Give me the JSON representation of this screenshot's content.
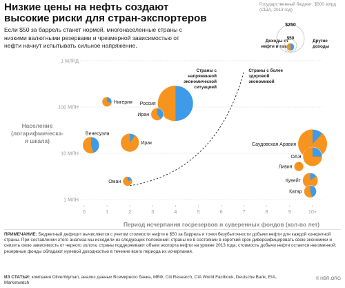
{
  "header": {
    "title": "Низкие цены на нефть создают высокие риски для стран-экспортеров",
    "subtitle": "Если $50 за баррель станет нормой, многонаселенные страны с низкими валютными резервами и чрезмерной зависимостью от нефти начнут испытывать сильное напряжение."
  },
  "legend": {
    "budget_title": "Государственный бюджет: $500 млрд (США, 2013 год)",
    "big_label": "$250",
    "small_label": "$50",
    "oil_label": "Доходы от нефти и газа",
    "other_label": "Другие доходы",
    "oil_color": "#f7941d",
    "other_color": "#3d9be9"
  },
  "chart_data": {
    "type": "scatter",
    "xlabel": "Период исчерпания госрезервов и суверенных фондов (кол-во лет)",
    "ylabel": "Население (логарифмическая шкала)",
    "xlim": [
      0,
      10
    ],
    "x_ticks": [
      "0",
      "1",
      "2",
      "3",
      "4",
      "5",
      "6",
      "7",
      "8",
      "9",
      "10+"
    ],
    "y_scale": "log",
    "y_ticks": [
      {
        "value": 1000000000,
        "label": "1 МЛРД"
      },
      {
        "value": 100000000,
        "label": "100 МЛН"
      },
      {
        "value": 10000000,
        "label": "10 МЛН"
      },
      {
        "value": 1000000,
        "label": "1 МЛН"
      }
    ],
    "zone_left": "Страны с напряженной экономической ситуацией",
    "zone_right": "Страны с более здоровой экономикой",
    "points": [
      {
        "name": "Нигерия",
        "x": 1.0,
        "y": 130000000,
        "budget": 30,
        "oil_share": 0.7,
        "label_side": "right"
      },
      {
        "name": "Россия",
        "x": 4.0,
        "y": 120000000,
        "budget": 420,
        "oil_share": 0.5,
        "label_side": "left"
      },
      {
        "name": "Иран",
        "x": 3.2,
        "y": 70000000,
        "budget": 50,
        "oil_share": 0.6,
        "label_side": "left"
      },
      {
        "name": "Венесуэла",
        "x": 0.3,
        "y": 15000000,
        "budget": 90,
        "oil_share": 0.55,
        "label_side": "above"
      },
      {
        "name": "Ирак",
        "x": 2.0,
        "y": 17000000,
        "budget": 110,
        "oil_share": 0.9,
        "label_side": "right"
      },
      {
        "name": "Оман",
        "x": 1.9,
        "y": 2500000,
        "budget": 28,
        "oil_share": 0.8,
        "label_side": "left"
      },
      {
        "name": "Саудовская Аравия",
        "x": 10.0,
        "y": 16000000,
        "budget": 280,
        "oil_share": 0.88,
        "label_side": "left"
      },
      {
        "name": "ОАЭ",
        "x": 10.0,
        "y": 8500000,
        "budget": 120,
        "oil_share": 0.75,
        "label_side": "left"
      },
      {
        "name": "Ливия",
        "x": 9.4,
        "y": 5200000,
        "budget": 28,
        "oil_share": 0.95,
        "label_side": "left"
      },
      {
        "name": "Кувейт",
        "x": 9.9,
        "y": 2600000,
        "budget": 75,
        "oil_share": 0.85,
        "label_side": "left"
      },
      {
        "name": "Катар",
        "x": 9.9,
        "y": 1500000,
        "budget": 50,
        "oil_share": 0.55,
        "label_side": "left"
      }
    ]
  },
  "footer": {
    "notes_label": "ПРИМЕЧАНИЕ:",
    "notes": "Бюджетный дефицит вычисляется с учетом стоимости нефти в $50 за баррель и точки безубыточности добычи нефти для каждой конкретной страны. При составлении этого анализа мы исходили из следующих положений: страны не в состоянии в короткий срок диверсифицировать свою экономики и снизить свою зависимость от черного золота; страны поддерживают объем экспорта нефти на уровне 2013 года; стоимость добычи нефти остается неизменной; резервные фонды обладают нулевой доходностью в течение всего периода их исчерпания.",
    "sources_label": "ИЗ СТАТЬИ:",
    "sources": "компания OliverWyman, анализ данных Всемирного банка, МВФ, Citi Research, CIA World Factbook, Deutsche Bank, EIA, Marketwatch",
    "credit": "© HBR.ORG"
  }
}
